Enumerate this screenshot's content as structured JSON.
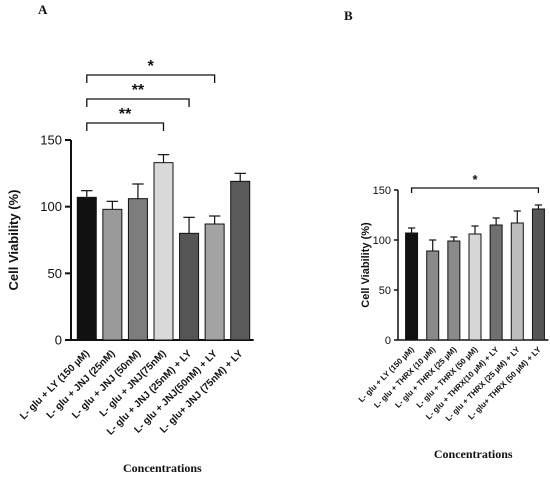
{
  "chart_data": [
    {
      "panel_label": "A",
      "type": "bar",
      "ylabel": "Cell Viability (%)",
      "xlabel": "Concentrations",
      "ylim": [
        0,
        150
      ],
      "yticks": [
        "0",
        "50",
        "100",
        "150"
      ],
      "categories": [
        "L- glu + LY (150 µM)",
        "L- glu + JNJ (25nM)",
        "L- glu + JNJ (50nM)",
        "L- glu + JNJ(75nM)",
        "L- glu + JNJ (25nM) + LY",
        "L- glu + JNJ(50nM) + LY",
        "L- glu+ JNJ (75nM) + LY"
      ],
      "values": [
        107,
        98,
        106,
        133,
        80,
        87,
        119
      ],
      "errors": [
        5,
        6,
        11,
        6,
        12,
        6,
        6
      ],
      "bar_colors": [
        "#111111",
        "#9a9a9a",
        "#7d7d7d",
        "#d9d9d9",
        "#555555",
        "#a3a3a3",
        "#5a5a5a"
      ],
      "significance": [
        {
          "from": 0,
          "to": 3,
          "label": "**"
        },
        {
          "from": 0,
          "to": 4,
          "label": "**"
        },
        {
          "from": 0,
          "to": 5,
          "label": "*"
        }
      ]
    },
    {
      "panel_label": "B",
      "type": "bar",
      "ylabel": "Cell Viability (%)",
      "xlabel": "Concentrations",
      "ylim": [
        0,
        150
      ],
      "yticks": [
        "0",
        "50",
        "100",
        "150"
      ],
      "categories": [
        "L- glu + LY (150 µM)",
        "L- glu + THRX (10 µM)",
        "L- glu + THRX (25 µM)",
        "L- glu + THRX (50 µM)",
        "L- glu + THRX(10 µM) + LY",
        "L- glu + THRX (25 µM) + LY",
        "L- glu+ THRX (50 µM) + LY"
      ],
      "values": [
        107,
        89,
        99,
        106,
        115,
        117,
        131
      ],
      "errors": [
        5,
        11,
        4,
        8,
        7,
        12,
        4
      ],
      "bar_colors": [
        "#111111",
        "#8a8a8a",
        "#8a8a8a",
        "#d6d6d6",
        "#707070",
        "#bdbdbd",
        "#555555"
      ],
      "significance": [
        {
          "from": 0,
          "to": 6,
          "label": "*"
        }
      ]
    }
  ]
}
